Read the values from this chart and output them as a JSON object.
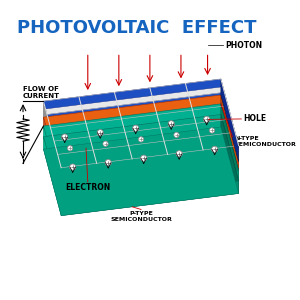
{
  "title": "PHOTOVOLTAIC  EFFECT",
  "title_color": "#1565C0",
  "title_fontsize": 13,
  "bg_color": "#FFFFFF",
  "labels": {
    "photon": "PHOTON",
    "flow_of_current": "FLOW OF\nCURRENT",
    "electron": "ELECTRON",
    "hole": "HOLE",
    "n_type": "N-TYPE\nSEMICONDUCTOR",
    "p_type": "P-TYPE\nSEMICONDUCTOR"
  },
  "colors": {
    "blue_panel": "#1E4FC2",
    "blue_dark": "#0D2A8C",
    "silver_light": "#E8E8E8",
    "silver_mid": "#C0C0C0",
    "silver_dark": "#909090",
    "orange_top": "#E86010",
    "orange_side": "#C04808",
    "teal_top": "#00B090",
    "teal_side": "#008060",
    "teal_dark": "#006040",
    "label_line": "#CC0000",
    "arrow_color": "#000000"
  },
  "panel": {
    "n_blue_stripes": 5,
    "n_busbars": 5,
    "n_circles_col": 5,
    "n_circles_row": 2
  }
}
